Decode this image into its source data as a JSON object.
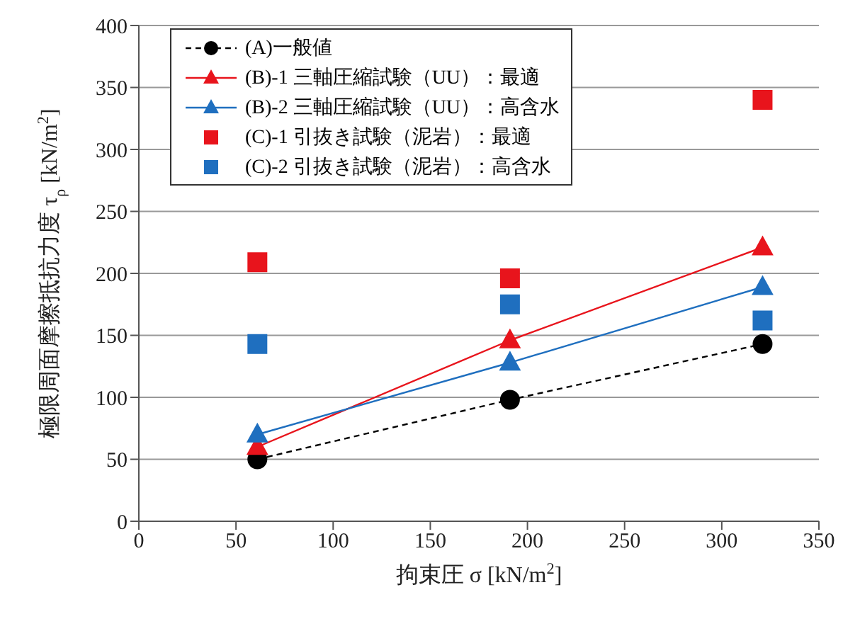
{
  "chart_data": {
    "type": "line",
    "xlabel": "拘束圧 σ  [kN/m$^{2}$]",
    "ylabel": "極限周面摩擦抵抗力度 τ$_{ρ}$  [kN/m$^{2}$]",
    "x": [
      61,
      191,
      321
    ],
    "series": [
      {
        "name": "(A)一般値",
        "color": "#000000",
        "marker": "circle",
        "line_style": "dashed",
        "values": [
          50,
          98,
          143
        ]
      },
      {
        "name": "(B)-1 三軸圧縮試験（UU）：最適",
        "color": "#e8141c",
        "marker": "triangle",
        "line_style": "solid",
        "values": [
          60,
          146,
          221
        ]
      },
      {
        "name": "(B)-2 三軸圧縮試験（UU）：高含水",
        "color": "#1f6fbf",
        "marker": "triangle",
        "line_style": "solid",
        "values": [
          70,
          128,
          189
        ]
      },
      {
        "name": "(C)-1 引抜き試験（泥岩）：最適",
        "color": "#e8141c",
        "type": "scatter",
        "marker": "square",
        "values": [
          209,
          196,
          340
        ]
      },
      {
        "name": "(C)-2 引抜き試験（泥岩）：高含水",
        "color": "#1f6fbf",
        "type": "scatter",
        "marker": "square",
        "values": [
          143,
          175,
          162
        ]
      }
    ],
    "xlim": [
      0,
      350
    ],
    "xticks": [
      0,
      50,
      100,
      150,
      200,
      250,
      300,
      350
    ],
    "ylim": [
      0,
      400
    ],
    "yticks": [
      0,
      50,
      100,
      150,
      200,
      250,
      300,
      350,
      400
    ],
    "grid": "y",
    "legend": "top left"
  }
}
